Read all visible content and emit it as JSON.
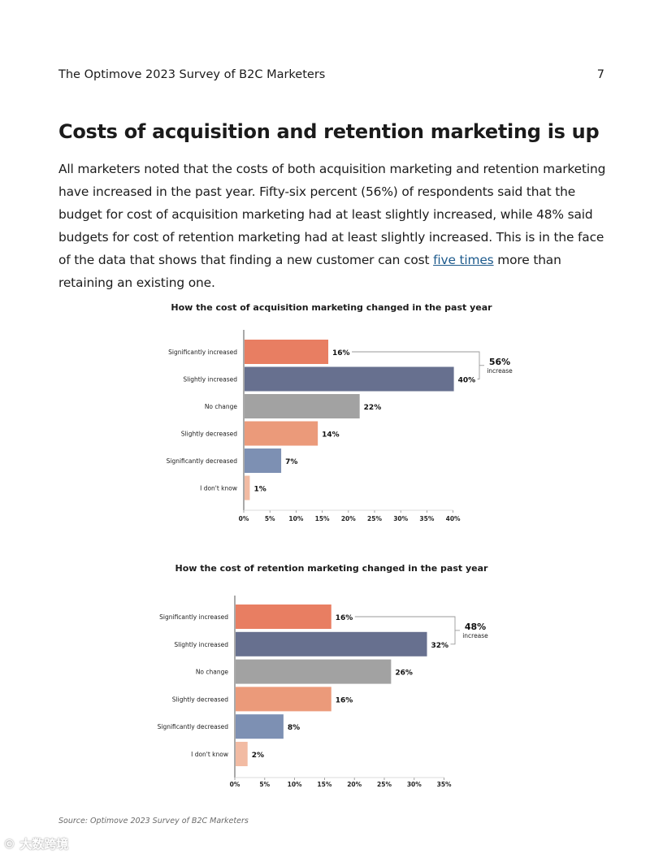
{
  "header": {
    "title": "The Optimove 2023 Survey of B2C Marketers",
    "page_number": "7"
  },
  "page_title": "Costs of acquisition and retention marketing is up",
  "paragraph": {
    "before_link": "All marketers noted that the costs of both acquisition marketing and retention marketing have increased in the past year. Fifty-six percent (56%) of respondents said that the budget for cost of acquisition marketing had at least slightly increased, while 48% said budgets for cost of retention marketing had at least slightly increased. This is in the face of the data that shows that finding a new customer can cost ",
    "link_text": "five times",
    "after_link": " more than retaining an existing one."
  },
  "chart_data": [
    {
      "type": "bar",
      "orientation": "horizontal",
      "title": "How the cost of acquisition marketing changed in the past year",
      "categories": [
        "Significantly increased",
        "Slightly increased",
        "No change",
        "Slightly decreased",
        "Significantly decreased",
        "I don't know"
      ],
      "values": [
        16,
        40,
        22,
        14,
        7,
        1
      ],
      "data_labels": [
        "16%",
        "40%",
        "22%",
        "14%",
        "7%",
        "1%"
      ],
      "xlim": [
        0,
        40
      ],
      "x_ticks": [
        "0%",
        "5%",
        "10%",
        "15%",
        "20%",
        "25%",
        "30%",
        "35%",
        "40%"
      ],
      "colors": [
        "#e87e62",
        "#67708f",
        "#a2a2a2",
        "#eb9a7a",
        "#7d90b3",
        "#f2bba3"
      ],
      "annotation": {
        "value": "56%",
        "label": "increase",
        "spans": [
          0,
          1
        ]
      },
      "xlabel": "",
      "ylabel": ""
    },
    {
      "type": "bar",
      "orientation": "horizontal",
      "title": "How the cost of retention marketing changed in the past year",
      "categories": [
        "Significantly increased",
        "Slightly increased",
        "No change",
        "Slightly decreased",
        "Significantly decreased",
        "I don't know"
      ],
      "values": [
        16,
        32,
        26,
        16,
        8,
        2
      ],
      "data_labels": [
        "16%",
        "32%",
        "26%",
        "16%",
        "8%",
        "2%"
      ],
      "xlim": [
        0,
        35
      ],
      "x_ticks": [
        "0%",
        "5%",
        "10%",
        "15%",
        "20%",
        "25%",
        "30%",
        "35%"
      ],
      "colors": [
        "#e87e62",
        "#67708f",
        "#a2a2a2",
        "#eb9a7a",
        "#7d90b3",
        "#f2bba3"
      ],
      "annotation": {
        "value": "48%",
        "label": "increase",
        "spans": [
          0,
          1
        ]
      },
      "xlabel": "",
      "ylabel": ""
    }
  ],
  "source_note": "Source: Optimove 2023 Survey of B2C Marketers",
  "watermark": "© 大数跨境"
}
